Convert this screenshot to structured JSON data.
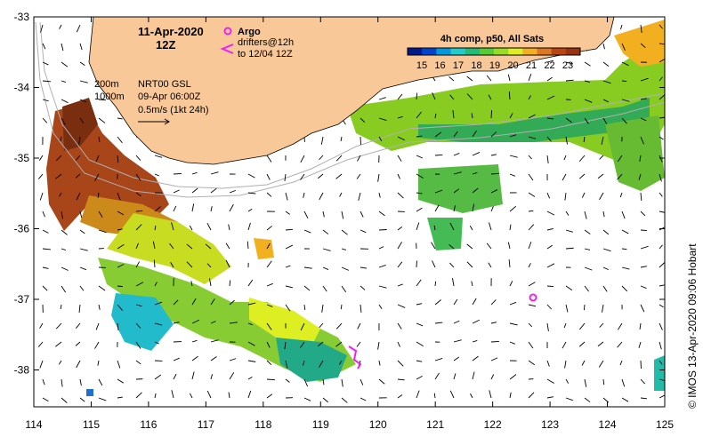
{
  "map": {
    "title_date": "11-Apr-2020",
    "title_time": "12Z",
    "argo_label": "Argo",
    "drifters_label": "drifters@12h",
    "drifters_to": "to 12/04 12Z",
    "isobath_200": "200m",
    "isobath_1000": "1000m",
    "product": "NRT00 GSL",
    "product_date": "09-Apr 06:00Z",
    "scale_label": "0.5m/s (1kt 24h)",
    "credit": "© IMOS 13-Apr-2020 09:06 Hobart",
    "land_color": "#f8c898",
    "argo_color": "#ee22ee",
    "drifter_color": "#ee22ee"
  },
  "colorbar": {
    "title": "4h comp, p50, All Sats",
    "ticks": [
      "15",
      "16",
      "17",
      "18",
      "19",
      "20",
      "21",
      "22",
      "23"
    ],
    "colors": [
      "#001a8c",
      "#0044cc",
      "#0099dd",
      "#22cccc",
      "#22bb77",
      "#55cc33",
      "#99dd22",
      "#ddee22",
      "#f2b020",
      "#dd7722",
      "#bb4411",
      "#993311"
    ]
  },
  "axes": {
    "x_ticks": [
      "114",
      "115",
      "116",
      "117",
      "118",
      "119",
      "120",
      "121",
      "122",
      "123",
      "124",
      "125"
    ],
    "y_ticks": [
      "-33",
      "-34",
      "-35",
      "-36",
      "-37",
      "-38"
    ]
  }
}
